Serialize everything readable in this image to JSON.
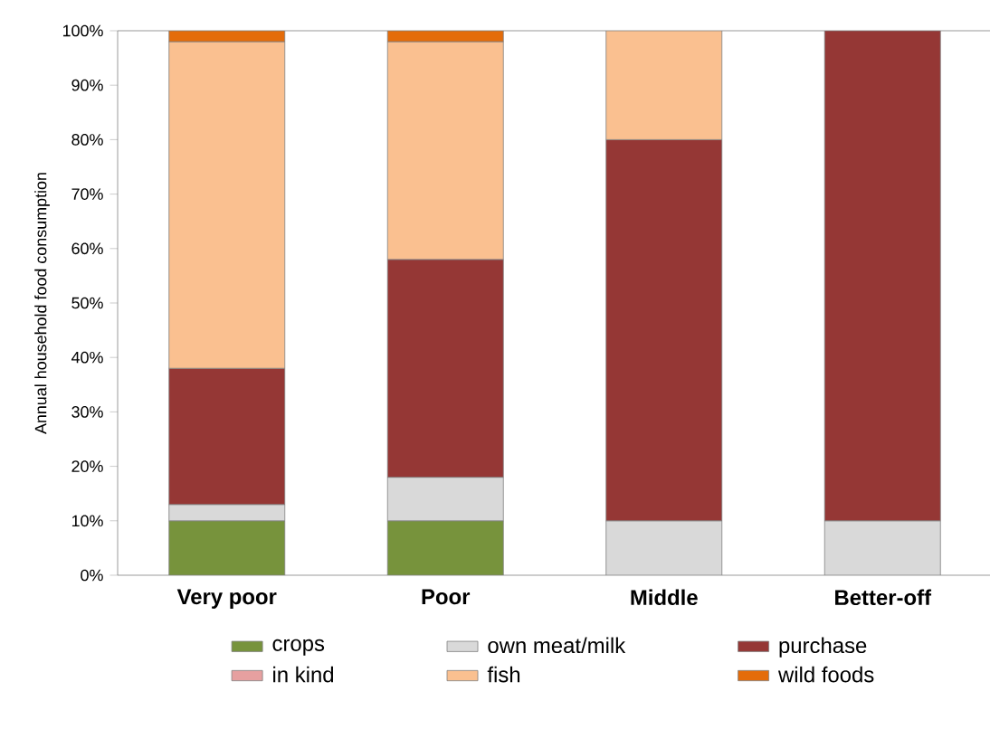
{
  "chart_data": {
    "type": "bar",
    "stacked": true,
    "ylabel": "Annual household food consumption",
    "categories": [
      "Very poor",
      "Poor",
      "Middle",
      "Better-off"
    ],
    "series": [
      {
        "name": "crops",
        "color": "#77933c",
        "values": [
          10,
          10,
          0,
          0
        ]
      },
      {
        "name": "own meat/milk",
        "color": "#d9d9d9",
        "values": [
          3,
          8,
          10,
          10
        ]
      },
      {
        "name": "purchase",
        "color": "#953735",
        "values": [
          25,
          40,
          70,
          90
        ]
      },
      {
        "name": "in kind",
        "color": "#e6a0a0",
        "values": [
          0,
          0,
          0,
          0
        ]
      },
      {
        "name": "fish",
        "color": "#fac090",
        "values": [
          60,
          40,
          20,
          0
        ]
      },
      {
        "name": "wild foods",
        "color": "#e46c0a",
        "values": [
          2,
          2,
          0,
          0
        ]
      }
    ],
    "ylim": [
      0,
      100
    ],
    "yticks": [
      {
        "value": 0,
        "label": "0%"
      },
      {
        "value": 10,
        "label": "10%"
      },
      {
        "value": 20,
        "label": "20%"
      },
      {
        "value": 30,
        "label": "30%"
      },
      {
        "value": 40,
        "label": "40%"
      },
      {
        "value": 50,
        "label": "50%"
      },
      {
        "value": 60,
        "label": "60%"
      },
      {
        "value": 70,
        "label": "70%"
      },
      {
        "value": 80,
        "label": "80%"
      },
      {
        "value": 90,
        "label": "90%"
      },
      {
        "value": 100,
        "label": "100%"
      }
    ],
    "legend": "bottom",
    "grid": false
  }
}
